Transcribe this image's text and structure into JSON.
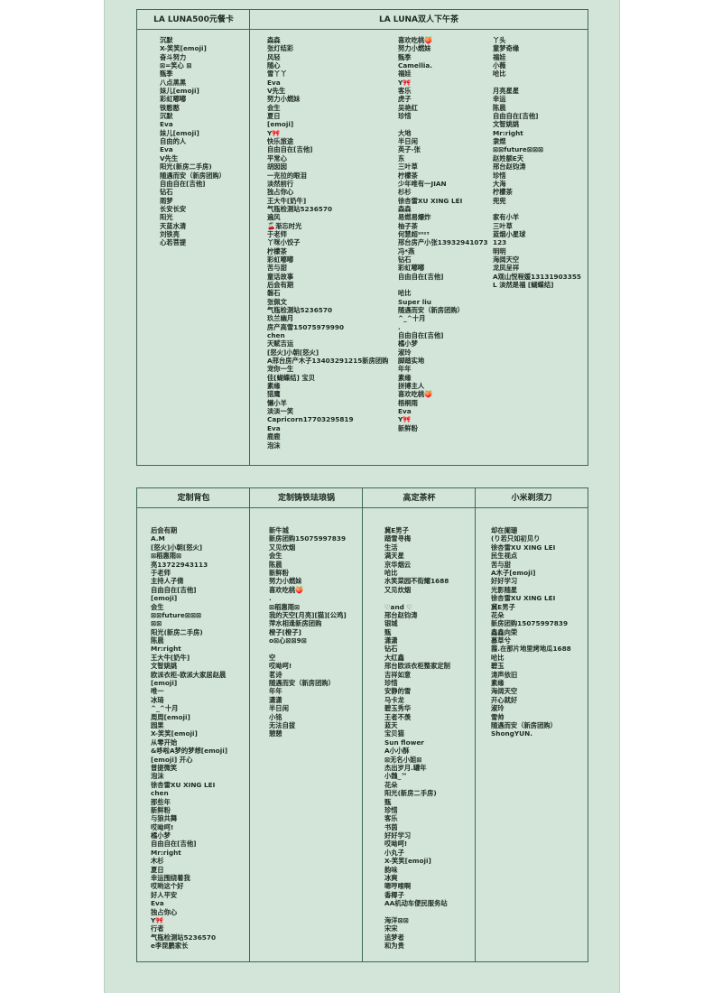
{
  "colors": {
    "panel": "#d3e5d9",
    "border": "#3e6a50",
    "peach_marker": "#f08a3c",
    "bow_marker": "#e8467a"
  },
  "top_table": {
    "headers": [
      "LA LUNA500元餐卡",
      "LA LUNA双人下午茶"
    ],
    "columns": [
      [
        "沉默",
        "X-笑笑[emoji]",
        "奋斗努力",
        "⊠=笑心 ⊠",
        "甄季",
        "八点黑黑",
        "妹儿[emoji]",
        "彩虹嘟嘟",
        "铁憨憨",
        "沉默",
        "Eva",
        "妹儿[emoji]",
        "自由的人",
        "Eva",
        "V先生",
        "阳光(新房二手房)",
        "随遇而安（新房团购）",
        "自由自在[吉他]",
        "钻石",
        "雨梦",
        "长安长安",
        "阳光",
        "天蓝水清",
        "刘铁亮",
        "心若菩提"
      ],
      [
        "森森",
        "张灯结彩",
        "风轻",
        "随心",
        "雪丫丫",
        "Eva",
        "V先生",
        "努力小燃妹",
        "会生",
        "夏日",
        "[emoji]",
        "Y🎀",
        "快乐旅途",
        "自由自在[吉他]",
        "平常心",
        "胡囡囡",
        "一克拉的眼泪",
        "淡然前行",
        "独占你心",
        "王大牛[奶牛]",
        "气瓶检测站5236570",
        "遍风",
        "🍒渐忘时光",
        "于老师",
        "丫咪小饺子",
        "柠檬茶",
        "彩虹嘟嘟",
        "苦与甜",
        "童话故事",
        "后会有期",
        "磐石",
        "张佩文",
        "气瓶检测站5236570",
        "玖兰幽月",
        "房产高雪15075979990",
        "chen",
        "天赋吉运",
        "[怒火]小朝[怒火]",
        "A邢台房产木子13403291215新房团购",
        "宠你一生",
        "佳[蝴蝶结] 宝贝",
        "素缘",
        "猎鹰",
        "懒小羊",
        "淡淡一笑",
        "Capricorn17703295819",
        "Eva",
        "鹿鹿",
        "泡沫"
      ],
      [
        "喜欢吃桃🍑",
        "努力小燃妹",
        "甄季",
        "Camellia.",
        "福娃",
        "Y🎀",
        "客乐",
        "虎子",
        "吴艳红",
        "珍惜",
        "",
        "大地",
        "半日闲",
        "英子-张",
        "东",
        "三叶草",
        "柠檬茶",
        "少年唯有一JIAN",
        "杉杉",
        "徐杏雷XU XING LEI",
        "森森",
        "易燃易爆炸",
        "柚子茶",
        "何慧超²⁰²³",
        "邢台房产小张13932941073",
        "冯*燕",
        "钻石",
        "彩虹嘟嘟",
        "自由自在[吉他]",
        "",
        "哈比",
        "Super liu",
        "随遇而安（新房团购）",
        "^_^十月",
        ".",
        "自由自在[吉他]",
        "橘小梦",
        "淑玲",
        "脚踏实地",
        "年年",
        "素缘",
        "拼搏主人",
        "喜欢吃桃🍑",
        "梧桐雨",
        "Eva",
        "Y🎀",
        "新鲜粉"
      ],
      [
        "丫头",
        "童梦奇缘",
        "福娃",
        "小薇",
        "哈比",
        "",
        "月亮星星",
        "幸运",
        "陈晨",
        "自由自在[吉他]",
        "文智姚姚",
        "Mr:right",
        "隶煜",
        "⊠⊠future⊠⊠⊠",
        "赵姓额E天",
        "邢台赵钧涛",
        "珍惜",
        "大海",
        "柠檬茶",
        "兜兜",
        "",
        "家有小羊",
        "三叶草",
        "蓝烟小星球",
        "123",
        "明明",
        "海阔天空",
        "龙凤呈祥",
        "A观山悦程媛13131903355",
        "L 淡然是福 [蝴蝶结]"
      ]
    ]
  },
  "bottom_table": {
    "headers": [
      "定制背包",
      "定制铸铁珐琅锅",
      "高定茶杯",
      "小米剃须刀"
    ],
    "columns": [
      [
        "后会有期",
        "A.M",
        "[怒火]小朝[怒火]",
        "⊠稻惠雨⊠",
        "亮13722943113",
        "于老师",
        "主持人子倩",
        "自由自在[吉他]",
        "[emoji]",
        "会生",
        "⊠⊠future⊠⊠⊠",
        "⊠⊠",
        "阳光(新房二手房)",
        "陈晨",
        "Mr:right",
        "王大牛[奶牛]",
        "文智姚姚",
        "欧派衣柜-欧派大家居赵晨",
        "[emoji]",
        "唯一",
        "冰琦",
        "^_^十月",
        "周周[emoji]",
        "园果",
        "X-笑笑[emoji]",
        "从零开始",
        "&哆啦A梦的梦想[emoji]",
        "[emoji] 开心",
        "普提微笑",
        "泡沫",
        "徐杏雷XU XING LEI",
        "chen",
        "那些年",
        "新鲜粉",
        "与狼共舞",
        "哎呦呵!",
        "橘小梦",
        "自由自在[吉他]",
        "Mr:right",
        "木杉",
        "夏日",
        "幸运围绕着我",
        "哎哟这个好",
        "好人平安",
        "Eva",
        "独占你心",
        "Y🎀",
        "行者",
        "气瓶检测站5236570",
        "e李昆鹏家长"
      ],
      [
        "新牛城",
        "新房团购15075997839",
        "又见炊烟",
        "会生",
        "陈晨",
        "新鲜粉",
        "努力小燃妹",
        "喜欢吃桃🍑",
        ".",
        "⊠稻惠雨⊠",
        "我的天空[月亮][猫][公鸡]",
        "萍水相逢新房团购",
        "橙子[橙子]",
        "o⊠心⊠⊠9⊠",
        "",
        "空",
        "哎呦呵!",
        "茗诗",
        "随遇而安（新房团购）",
        "年年",
        "潇潇",
        "半日闲",
        "小铭",
        "无法自拔",
        "憩憩"
      ],
      [
        "冀E男子",
        "踏雪寻梅",
        "生活",
        "满天星",
        "京华烟云",
        "哈比",
        "水笑菜园不街耀1688",
        "又见炊烟",
        "",
        "♡and ♡",
        "邢台赵钧涛",
        "银城",
        "甄",
        "潇潇",
        "钻石",
        "大红鑫",
        "邢台欧派衣柜整家定制",
        "吉祥如意",
        "珍惜",
        "安静的雪",
        "马卡龙",
        "碧玉秀华",
        "王者不羡",
        "蓝天",
        "宝贝猫",
        "Sun flower",
        "A小小酥",
        "⊠无名小姐⊠",
        "杰出岁月.罐年",
        "小魏_™",
        "花朵",
        "阳光(新房二手房)",
        "甄",
        "珍惜",
        "客乐",
        "书茵",
        "好好学习",
        "哎呦呵!",
        "小丸子",
        "X-笑笑[emoji]",
        "韵味",
        "冰爽",
        "嗯哼嗦啊",
        "香椰子",
        "AA机动车便民服务站",
        "",
        "海洋⊠⊠",
        "宋宋",
        "追梦者",
        "和为贵"
      ],
      [
        "却在阑珊",
        "(り若只如初见り",
        "徐杏雷XU XING LEI",
        "民生视点",
        "苦与甜",
        "A木子[emoji]",
        "好好学习",
        "光影随星",
        "徐杏雷XU XING LEI",
        "冀E男子",
        "花朵",
        "新房团购15075997839",
        "鑫鑫向荣",
        "慕草兮",
        "霞.在那片地里烤地瓜1688",
        "哈比",
        "碧玉",
        "涛声依旧",
        "素缘",
        "海阔天空",
        "开心就好",
        "淑玲",
        "雪帅",
        "随遇而安（新房团购）",
        "ShongYUN."
      ]
    ]
  }
}
